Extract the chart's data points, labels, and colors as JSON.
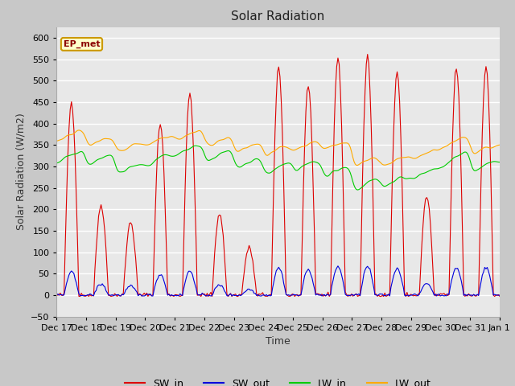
{
  "title": "Solar Radiation",
  "xlabel": "Time",
  "ylabel": "Solar Radiation (W/m2)",
  "ylim": [
    -50,
    625
  ],
  "yticks": [
    -50,
    0,
    50,
    100,
    150,
    200,
    250,
    300,
    350,
    400,
    450,
    500,
    550,
    600
  ],
  "fig_bg_color": "#c8c8c8",
  "plot_bg_color": "#e8e8e8",
  "grid_color": "#ffffff",
  "line_colors": {
    "SW_in": "#dd0000",
    "SW_out": "#0000dd",
    "LW_in": "#00cc00",
    "LW_out": "#ffaa00"
  },
  "legend_labels": [
    "SW_in",
    "SW_out",
    "LW_in",
    "LW_out"
  ],
  "annotation_text": "EP_met",
  "annotation_bg": "#ffffcc",
  "annotation_border": "#cc9900",
  "num_days": 15,
  "start_day": 17,
  "hours_per_day": 24,
  "seed": 42,
  "peak_vals": [
    450,
    210,
    170,
    400,
    470,
    190,
    110,
    530,
    490,
    555,
    555,
    520,
    230,
    530,
    535
  ],
  "lw_in_base_per_day": [
    320,
    310,
    290,
    310,
    335,
    320,
    300,
    290,
    295,
    285,
    255,
    260,
    280,
    315,
    295
  ],
  "lw_out_base_per_day": [
    370,
    355,
    340,
    355,
    370,
    355,
    340,
    335,
    345,
    345,
    305,
    310,
    325,
    355,
    335
  ]
}
